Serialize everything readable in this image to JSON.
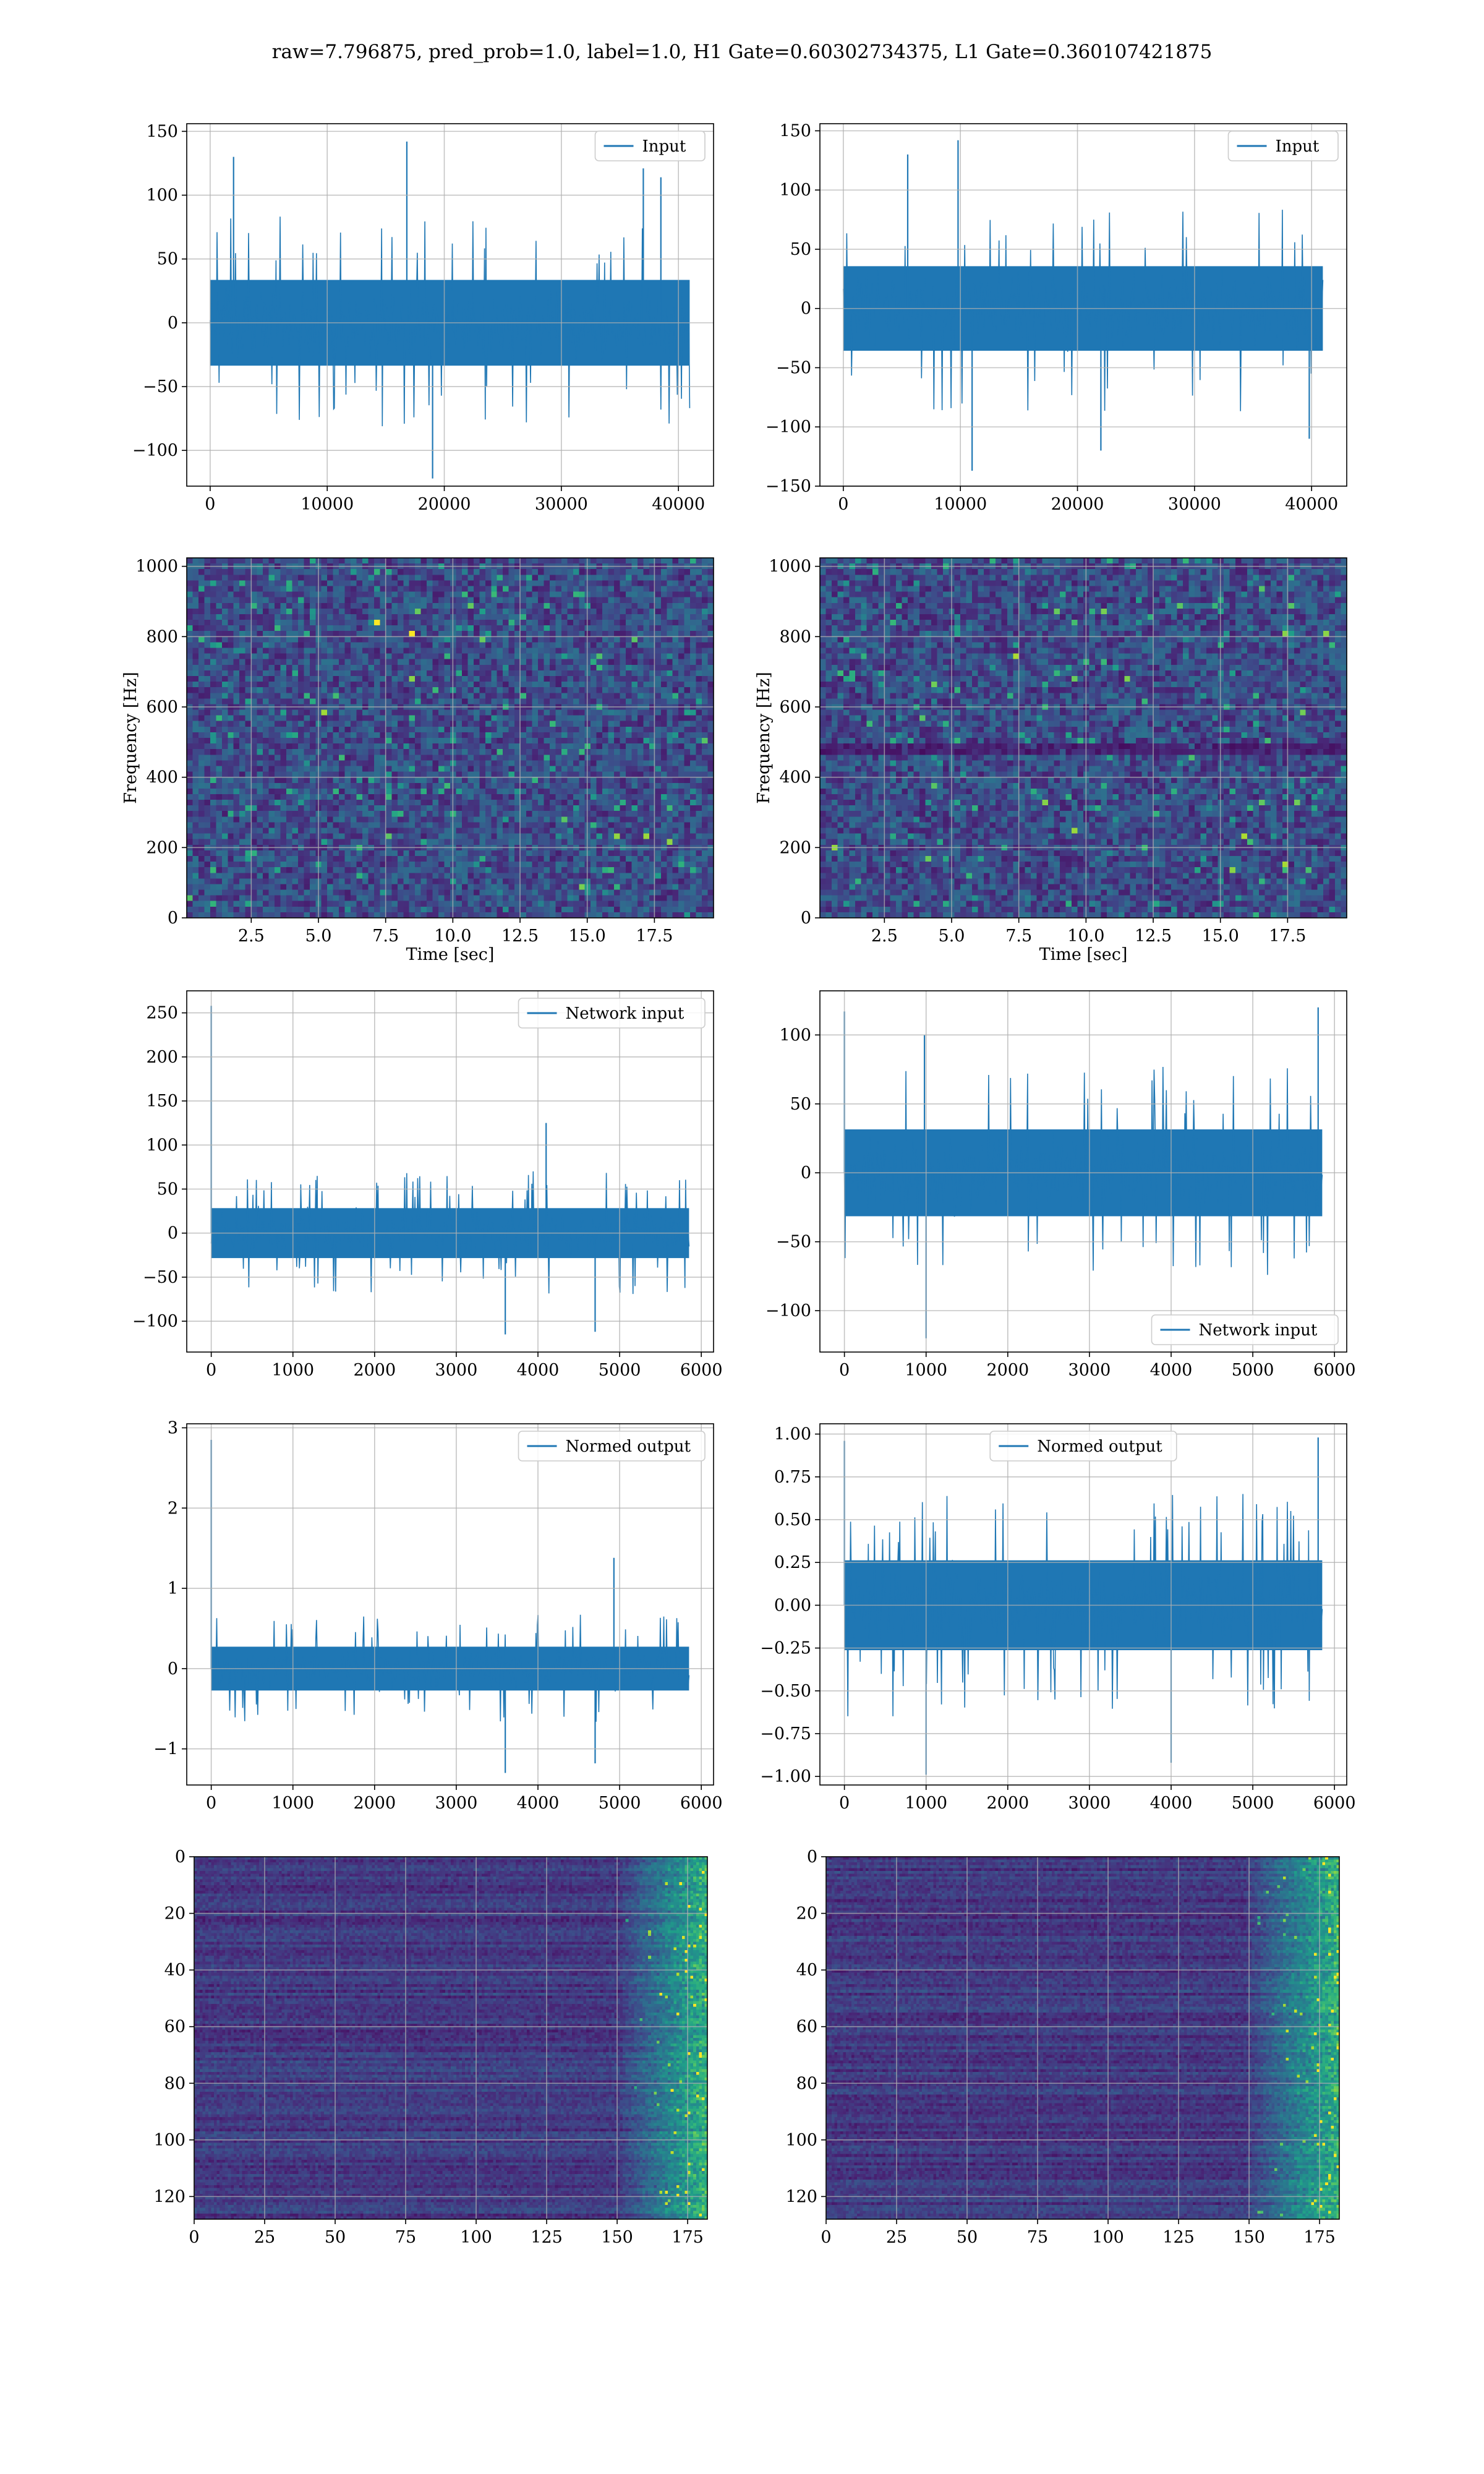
{
  "figure": {
    "title": "raw=7.796875, pred_prob=1.0, label=1.0, H1 Gate=0.60302734375, L1 Gate=0.360107421875"
  },
  "colors": {
    "line": "#1f77b4",
    "grid": "#b0b0b0",
    "viridis": [
      "#440154",
      "#482878",
      "#3e4989",
      "#31688e",
      "#26828e",
      "#1f9e89",
      "#35b779",
      "#6ece58",
      "#b5de2b",
      "#fde725"
    ]
  },
  "chart_data": [
    {
      "id": "r0c0",
      "type": "line",
      "legend": "Input",
      "legend_loc": "upper right",
      "x_range": [
        0,
        40960
      ],
      "amp": 32,
      "spikes": [
        [
          2000,
          130
        ],
        [
          16800,
          142
        ],
        [
          19000,
          -122
        ],
        [
          37000,
          121
        ],
        [
          38500,
          114
        ]
      ],
      "xlim": [
        -2000,
        43000
      ],
      "ylim": [
        -128,
        156
      ],
      "xticks": [
        0,
        10000,
        20000,
        30000,
        40000
      ],
      "xticklabels": [
        "0",
        "10000",
        "20000",
        "30000",
        "40000"
      ],
      "yticks": [
        -100,
        -50,
        0,
        50,
        100,
        150
      ],
      "yticklabels": [
        "−100",
        "−50",
        "0",
        "50",
        "100",
        "150"
      ],
      "xlabel": "",
      "ylabel": ""
    },
    {
      "id": "r0c1",
      "type": "line",
      "legend": "Input",
      "legend_loc": "upper right",
      "x_range": [
        0,
        40960
      ],
      "amp": 34,
      "spikes": [
        [
          9800,
          142
        ],
        [
          11000,
          -137
        ],
        [
          5500,
          130
        ],
        [
          22000,
          -120
        ],
        [
          39800,
          -110
        ]
      ],
      "xlim": [
        -2000,
        43000
      ],
      "ylim": [
        -150,
        156
      ],
      "xticks": [
        0,
        10000,
        20000,
        30000,
        40000
      ],
      "xticklabels": [
        "0",
        "10000",
        "20000",
        "30000",
        "40000"
      ],
      "yticks": [
        -150,
        -100,
        -50,
        0,
        50,
        100,
        150
      ],
      "yticklabels": [
        "−150",
        "−100",
        "−50",
        "0",
        "50",
        "100",
        "150"
      ],
      "xlabel": "",
      "ylabel": ""
    },
    {
      "id": "r1c0",
      "type": "heatmap",
      "xlim": [
        0.1,
        19.7
      ],
      "ylim": [
        0,
        1024
      ],
      "xticks": [
        2.5,
        5.0,
        7.5,
        10.0,
        12.5,
        15.0,
        17.5
      ],
      "xticklabels": [
        "2.5",
        "5.0",
        "7.5",
        "10.0",
        "12.5",
        "15.0",
        "17.5"
      ],
      "yticks": [
        0,
        200,
        400,
        600,
        800,
        1000
      ],
      "yticklabels": [
        "0",
        "200",
        "400",
        "600",
        "800",
        "1000"
      ],
      "xlabel": "Time [sec]",
      "ylabel": "Frequency [Hz]"
    },
    {
      "id": "r1c1",
      "type": "heatmap",
      "xlim": [
        0.1,
        19.7
      ],
      "ylim": [
        0,
        1024
      ],
      "xticks": [
        2.5,
        5.0,
        7.5,
        10.0,
        12.5,
        15.0,
        17.5
      ],
      "xticklabels": [
        "2.5",
        "5.0",
        "7.5",
        "10.0",
        "12.5",
        "15.0",
        "17.5"
      ],
      "yticks": [
        0,
        200,
        400,
        600,
        800,
        1000
      ],
      "yticklabels": [
        "0",
        "200",
        "400",
        "600",
        "800",
        "1000"
      ],
      "xlabel": "Time [sec]",
      "ylabel": "Frequency [Hz]"
    },
    {
      "id": "r2c0",
      "type": "line",
      "legend": "Network input",
      "legend_loc": "upper right",
      "x_range": [
        0,
        5850
      ],
      "amp": 27,
      "spikes": [
        [
          0,
          258
        ],
        [
          4100,
          125
        ],
        [
          3600,
          -115
        ],
        [
          4700,
          -112
        ]
      ],
      "xlim": [
        -300,
        6150
      ],
      "ylim": [
        -135,
        275
      ],
      "xticks": [
        0,
        1000,
        2000,
        3000,
        4000,
        5000,
        6000
      ],
      "xticklabels": [
        "0",
        "1000",
        "2000",
        "3000",
        "4000",
        "5000",
        "6000"
      ],
      "yticks": [
        -100,
        -50,
        0,
        50,
        100,
        150,
        200,
        250
      ],
      "yticklabels": [
        "−100",
        "−50",
        "0",
        "50",
        "100",
        "150",
        "200",
        "250"
      ],
      "xlabel": "",
      "ylabel": ""
    },
    {
      "id": "r2c1",
      "type": "line",
      "legend": "Network input",
      "legend_loc": "lower right",
      "x_range": [
        0,
        5850
      ],
      "amp": 30,
      "spikes": [
        [
          0,
          117
        ],
        [
          5800,
          120
        ],
        [
          1000,
          -120
        ],
        [
          980,
          100
        ]
      ],
      "xlim": [
        -300,
        6150
      ],
      "ylim": [
        -130,
        132
      ],
      "xticks": [
        0,
        1000,
        2000,
        3000,
        4000,
        5000,
        6000
      ],
      "xticklabels": [
        "0",
        "1000",
        "2000",
        "3000",
        "4000",
        "5000",
        "6000"
      ],
      "yticks": [
        -100,
        -50,
        0,
        50,
        100
      ],
      "yticklabels": [
        "−100",
        "−50",
        "0",
        "50",
        "100"
      ],
      "xlabel": "",
      "ylabel": ""
    },
    {
      "id": "r3c0",
      "type": "line",
      "legend": "Normed output",
      "legend_loc": "upper right",
      "x_range": [
        0,
        5850
      ],
      "amp": 0.26,
      "spikes": [
        [
          0,
          2.85
        ],
        [
          4930,
          1.38
        ],
        [
          3600,
          -1.3
        ],
        [
          4700,
          -1.18
        ]
      ],
      "xlim": [
        -300,
        6150
      ],
      "ylim": [
        -1.45,
        3.05
      ],
      "xticks": [
        0,
        1000,
        2000,
        3000,
        4000,
        5000,
        6000
      ],
      "xticklabels": [
        "0",
        "1000",
        "2000",
        "3000",
        "4000",
        "5000",
        "6000"
      ],
      "yticks": [
        -1,
        0,
        1,
        2,
        3
      ],
      "yticklabels": [
        "−1",
        "0",
        "1",
        "2",
        "3"
      ],
      "xlabel": "",
      "ylabel": ""
    },
    {
      "id": "r3c1",
      "type": "line",
      "legend": "Normed output",
      "legend_loc": "upper center",
      "x_range": [
        0,
        5850
      ],
      "amp": 0.25,
      "spikes": [
        [
          0,
          0.96
        ],
        [
          5800,
          0.98
        ],
        [
          1000,
          -0.99
        ],
        [
          4000,
          -0.92
        ]
      ],
      "xlim": [
        -300,
        6150
      ],
      "ylim": [
        -1.05,
        1.06
      ],
      "xticks": [
        0,
        1000,
        2000,
        3000,
        4000,
        5000,
        6000
      ],
      "xticklabels": [
        "0",
        "1000",
        "2000",
        "3000",
        "4000",
        "5000",
        "6000"
      ],
      "yticks": [
        -1.0,
        -0.75,
        -0.5,
        -0.25,
        0.0,
        0.25,
        0.5,
        0.75,
        1.0
      ],
      "yticklabels": [
        "−1.00",
        "−0.75",
        "−0.50",
        "−0.25",
        "0.00",
        "0.25",
        "0.50",
        "0.75",
        "1.00"
      ],
      "xlabel": "",
      "ylabel": ""
    },
    {
      "id": "r4c0",
      "type": "heatmap",
      "hot_cols": [
        150,
        182
      ],
      "xlim": [
        0,
        182
      ],
      "ylim": [
        128,
        0
      ],
      "xticks": [
        0,
        25,
        50,
        75,
        100,
        125,
        150,
        175
      ],
      "xticklabels": [
        "0",
        "25",
        "50",
        "75",
        "100",
        "125",
        "150",
        "175"
      ],
      "yticks": [
        0,
        20,
        40,
        60,
        80,
        100,
        120
      ],
      "yticklabels": [
        "0",
        "20",
        "40",
        "60",
        "80",
        "100",
        "120"
      ],
      "xlabel": "",
      "ylabel": ""
    },
    {
      "id": "r4c1",
      "type": "heatmap",
      "hot_cols": [
        148,
        182
      ],
      "xlim": [
        0,
        182
      ],
      "ylim": [
        128,
        0
      ],
      "xticks": [
        0,
        25,
        50,
        75,
        100,
        125,
        150,
        175
      ],
      "xticklabels": [
        "0",
        "25",
        "50",
        "75",
        "100",
        "125",
        "150",
        "175"
      ],
      "yticks": [
        0,
        20,
        40,
        60,
        80,
        100,
        120
      ],
      "yticklabels": [
        "0",
        "20",
        "40",
        "60",
        "80",
        "100",
        "120"
      ],
      "xlabel": "",
      "ylabel": ""
    }
  ]
}
